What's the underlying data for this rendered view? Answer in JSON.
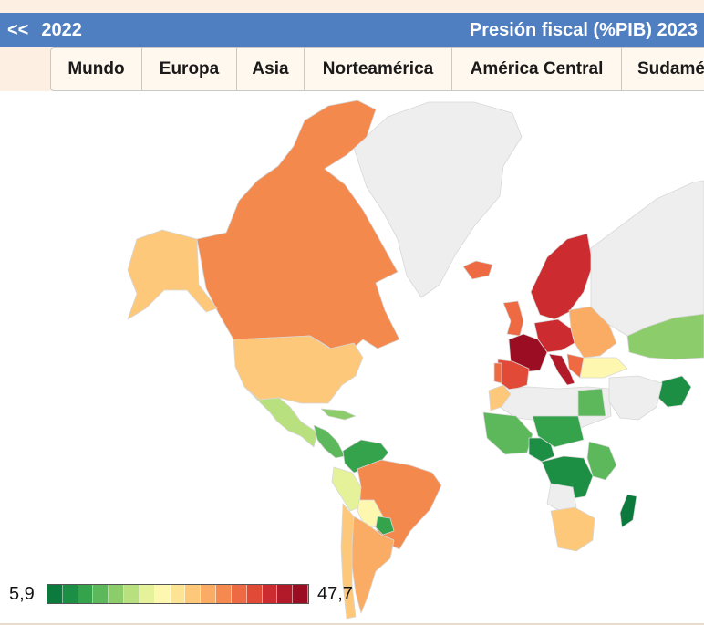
{
  "header": {
    "prev_label": "<<",
    "prev_year": "2022",
    "title": "Presión fiscal (%PIB) 2023"
  },
  "tabs": [
    {
      "label": "Mundo"
    },
    {
      "label": "Europa"
    },
    {
      "label": "Asia"
    },
    {
      "label": "Norteamérica"
    },
    {
      "label": "América Central"
    },
    {
      "label": "Sudamé"
    }
  ],
  "legend": {
    "min_label": "5,9",
    "max_label": "47,7",
    "colors": [
      "#0b7a3c",
      "#1c8f45",
      "#35a24c",
      "#5cb85a",
      "#8ccc6a",
      "#b9e07e",
      "#e6f29a",
      "#fef7b0",
      "#fde494",
      "#fdc87a",
      "#fbac64",
      "#f6894f",
      "#ee6a42",
      "#e04a37",
      "#cc2c2f",
      "#b21a2a",
      "#9a0d22"
    ]
  },
  "map": {
    "colors": {
      "ocean": "#ffffff",
      "no_data": "#eeeeee",
      "border": "#d8d8d8"
    },
    "regions": [
      {
        "name": "greenland",
        "fill": "#eeeeee"
      },
      {
        "name": "canada",
        "fill": "#f4894e"
      },
      {
        "name": "alaska",
        "fill": "#fdc87a"
      },
      {
        "name": "united-states",
        "fill": "#fdc87a"
      },
      {
        "name": "mexico",
        "fill": "#b9e07e"
      },
      {
        "name": "central-america",
        "fill": "#5cb85a"
      },
      {
        "name": "caribbean",
        "fill": "#8ccc6a"
      },
      {
        "name": "colombia-venezuela",
        "fill": "#35a24c"
      },
      {
        "name": "peru-ecuador",
        "fill": "#e6f29a"
      },
      {
        "name": "brazil",
        "fill": "#f4894e"
      },
      {
        "name": "bolivia",
        "fill": "#fef7b0"
      },
      {
        "name": "paraguay",
        "fill": "#35a24c"
      },
      {
        "name": "argentina",
        "fill": "#fbac64"
      },
      {
        "name": "chile",
        "fill": "#fdc87a"
      },
      {
        "name": "iceland",
        "fill": "#ee6a42"
      },
      {
        "name": "scandinavia",
        "fill": "#cc2c2f"
      },
      {
        "name": "uk",
        "fill": "#ee6a42"
      },
      {
        "name": "france",
        "fill": "#9a0d22"
      },
      {
        "name": "spain",
        "fill": "#e04a37"
      },
      {
        "name": "portugal",
        "fill": "#ee6a42"
      },
      {
        "name": "central-europe",
        "fill": "#cc2c2f"
      },
      {
        "name": "italy",
        "fill": "#b21a2a"
      },
      {
        "name": "eastern-europe",
        "fill": "#fbac64"
      },
      {
        "name": "balkans",
        "fill": "#ee6a42"
      },
      {
        "name": "turkey",
        "fill": "#fef7b0"
      },
      {
        "name": "central-asia",
        "fill": "#8ccc6a"
      },
      {
        "name": "russia",
        "fill": "#eeeeee"
      },
      {
        "name": "north-africa",
        "fill": "#eeeeee"
      },
      {
        "name": "morocco",
        "fill": "#fdc87a"
      },
      {
        "name": "egypt",
        "fill": "#5cb85a"
      },
      {
        "name": "west-africa",
        "fill": "#5cb85a"
      },
      {
        "name": "nigeria",
        "fill": "#1c8f45"
      },
      {
        "name": "niger-chad",
        "fill": "#35a24c"
      },
      {
        "name": "central-africa",
        "fill": "#1c8f45"
      },
      {
        "name": "east-africa",
        "fill": "#5cb85a"
      },
      {
        "name": "angola",
        "fill": "#eeeeee"
      },
      {
        "name": "southern-africa",
        "fill": "#fdc87a"
      },
      {
        "name": "madagascar",
        "fill": "#0b7a3c"
      },
      {
        "name": "pakistan",
        "fill": "#1c8f45"
      },
      {
        "name": "middle-east",
        "fill": "#eeeeee"
      }
    ]
  }
}
